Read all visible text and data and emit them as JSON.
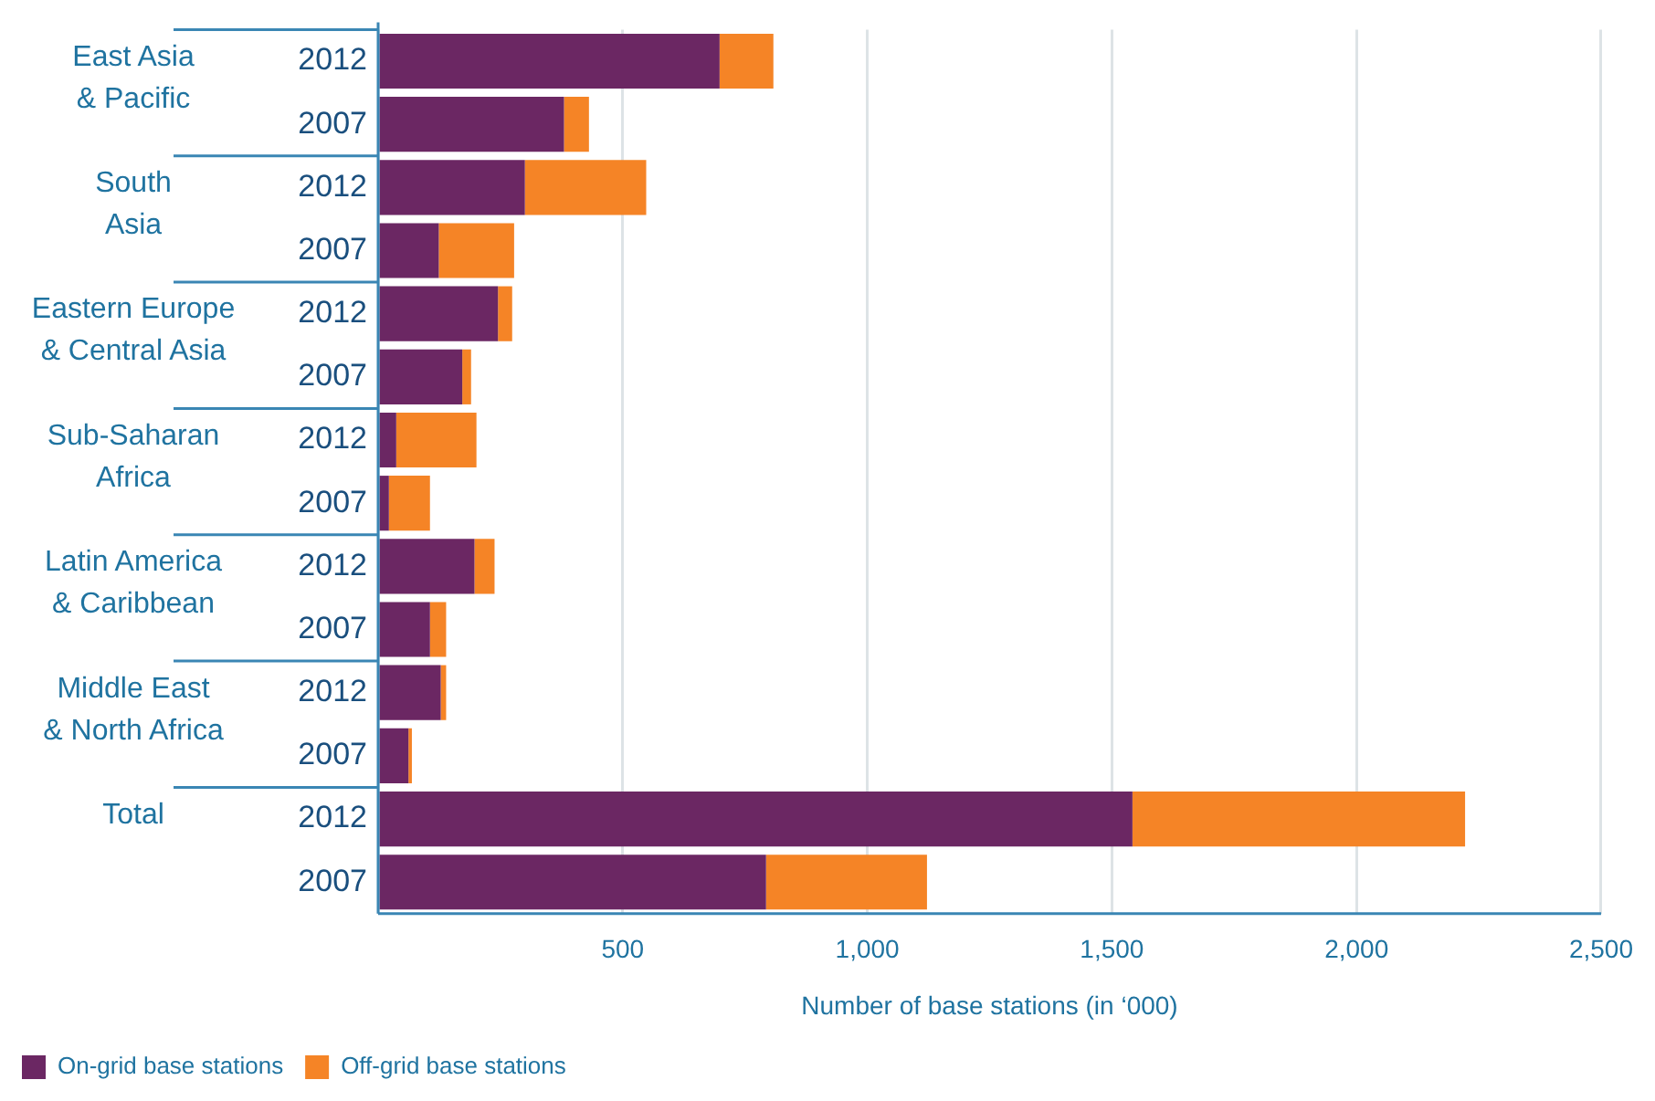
{
  "chart_data": {
    "type": "bar",
    "orientation": "horizontal",
    "stacked": true,
    "categories": [
      "2012",
      "2007",
      "2012",
      "2007",
      "2012",
      "2007",
      "2012",
      "2007",
      "2012",
      "2007",
      "2012",
      "2007",
      "2012",
      "2007"
    ],
    "series": [
      {
        "name": "On-grid base stations",
        "color": "#6b2763",
        "values": [
          698,
          380,
          300,
          124,
          245,
          172,
          37,
          22,
          197,
          106,
          128,
          62,
          1542,
          793
        ]
      },
      {
        "name": "Off-grid base stations",
        "color": "#f58426",
        "values": [
          110,
          51,
          248,
          154,
          29,
          18,
          164,
          84,
          41,
          33,
          11,
          7,
          680,
          329
        ]
      }
    ],
    "annotations": [
      "East Asia\n& Pacific",
      "South\nAsia",
      "Eastern Europe\n& Central Asia",
      "Sub-Saharan\nAfrica",
      "Latin America\n& Caribbean",
      "Middle East\n& North Africa",
      "Total"
    ],
    "xlabel": "Number of base stations (in ‘000)",
    "xlim": [
      0,
      2500
    ],
    "xticks": [
      {
        "value": 0,
        "label": null
      },
      500,
      {
        "value": 1000,
        "label": "1,000"
      },
      {
        "value": 1500,
        "label": "1,500"
      },
      {
        "value": 2000,
        "label": "2,000"
      },
      {
        "value": 2500,
        "label": "2,500"
      }
    ],
    "grid": "x",
    "legend": "bottom left"
  }
}
